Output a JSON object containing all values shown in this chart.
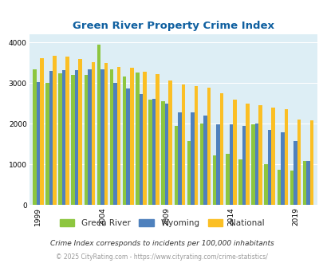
{
  "title": "Green River Property Crime Index",
  "years": [
    1999,
    2000,
    2001,
    2002,
    2003,
    2004,
    2005,
    2006,
    2007,
    2008,
    2009,
    2010,
    2011,
    2012,
    2013,
    2014,
    2015,
    2016,
    2017,
    2018,
    2019,
    2020
  ],
  "green_river": [
    3330,
    3000,
    3230,
    3200,
    3190,
    3950,
    3340,
    3160,
    3250,
    2590,
    2550,
    1950,
    1580,
    2010,
    1220,
    1270,
    1120,
    1980,
    1010,
    870,
    840,
    1090
  ],
  "wyoming": [
    3030,
    3290,
    3310,
    3310,
    3340,
    3330,
    3000,
    2870,
    2720,
    2620,
    2500,
    2270,
    2280,
    2200,
    1980,
    1980,
    1940,
    2000,
    1850,
    1780,
    1580,
    1090
  ],
  "national": [
    3620,
    3660,
    3640,
    3600,
    3520,
    3490,
    3400,
    3380,
    3280,
    3210,
    3060,
    2960,
    2930,
    2880,
    2740,
    2600,
    2490,
    2450,
    2400,
    2360,
    2110,
    2090
  ],
  "green_river_color": "#8dc63f",
  "wyoming_color": "#4f81bd",
  "national_color": "#fbbf24",
  "bg_color": "#ddeef5",
  "title_color": "#1060a0",
  "ylim": [
    0,
    4200
  ],
  "yticks": [
    0,
    1000,
    2000,
    3000,
    4000
  ],
  "bar_width": 0.28,
  "subtitle": "Crime Index corresponds to incidents per 100,000 inhabitants",
  "footer": "© 2025 CityRating.com - https://www.cityrating.com/crime-statistics/",
  "legend_labels": [
    "Green River",
    "Wyoming",
    "National"
  ],
  "x_tick_years": [
    1999,
    2004,
    2009,
    2014,
    2019
  ]
}
